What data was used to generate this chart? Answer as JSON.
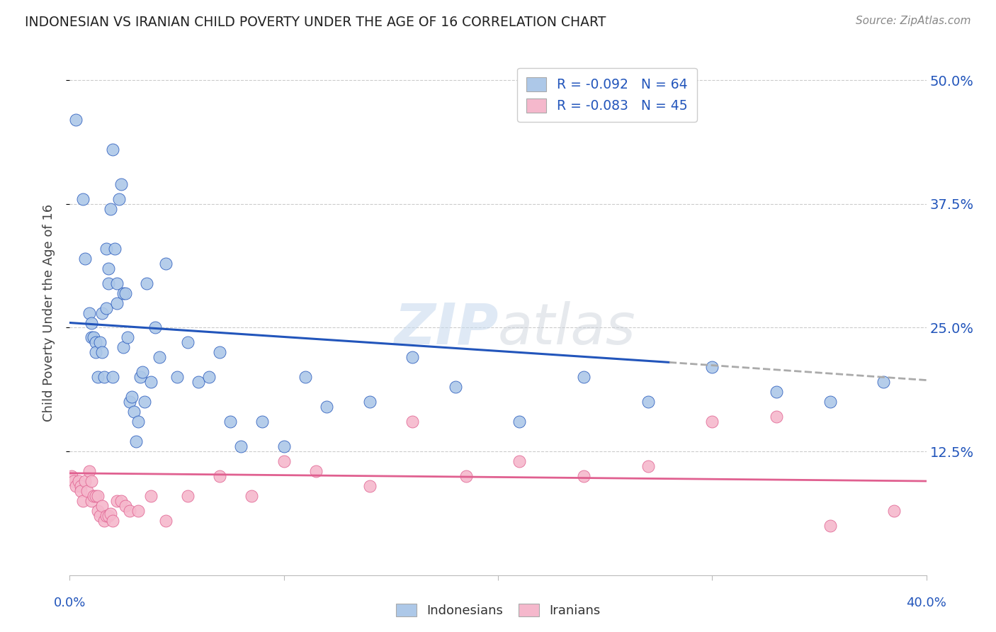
{
  "title": "INDONESIAN VS IRANIAN CHILD POVERTY UNDER THE AGE OF 16 CORRELATION CHART",
  "source": "Source: ZipAtlas.com",
  "ylabel": "Child Poverty Under the Age of 16",
  "ytick_labels": [
    "50.0%",
    "37.5%",
    "25.0%",
    "12.5%"
  ],
  "xlim": [
    0.0,
    0.4
  ],
  "ylim": [
    0.0,
    0.53
  ],
  "indonesian_color": "#adc8e8",
  "iranian_color": "#f5b8cc",
  "trendline_indo_color": "#2255bb",
  "trendline_iran_color": "#e06090",
  "trendline_dashed_color": "#aaaaaa",
  "legend_indo_label": "R = -0.092   N = 64",
  "legend_iran_label": "R = -0.083   N = 45",
  "watermark_zip": "ZIP",
  "watermark_atlas": "atlas",
  "background_color": "#ffffff",
  "grid_color": "#cccccc",
  "indo_trendline_x0": 0.0,
  "indo_trendline_y0": 0.255,
  "indo_trendline_x1": 0.28,
  "indo_trendline_y1": 0.215,
  "indo_trendline_xd0": 0.28,
  "indo_trendline_yd0": 0.215,
  "indo_trendline_xd1": 0.4,
  "indo_trendline_yd1": 0.197,
  "iran_trendline_x0": 0.0,
  "iran_trendline_y0": 0.103,
  "iran_trendline_x1": 0.4,
  "iran_trendline_y1": 0.095,
  "indonesian_x": [
    0.003,
    0.006,
    0.007,
    0.009,
    0.01,
    0.01,
    0.011,
    0.012,
    0.012,
    0.013,
    0.014,
    0.015,
    0.015,
    0.016,
    0.017,
    0.017,
    0.018,
    0.018,
    0.019,
    0.02,
    0.02,
    0.021,
    0.022,
    0.022,
    0.023,
    0.024,
    0.025,
    0.025,
    0.026,
    0.027,
    0.028,
    0.029,
    0.03,
    0.031,
    0.032,
    0.033,
    0.034,
    0.035,
    0.036,
    0.038,
    0.04,
    0.042,
    0.045,
    0.05,
    0.055,
    0.06,
    0.065,
    0.07,
    0.075,
    0.08,
    0.09,
    0.1,
    0.11,
    0.12,
    0.14,
    0.16,
    0.18,
    0.21,
    0.24,
    0.27,
    0.3,
    0.33,
    0.355,
    0.38
  ],
  "indonesian_y": [
    0.46,
    0.38,
    0.32,
    0.265,
    0.255,
    0.24,
    0.24,
    0.235,
    0.225,
    0.2,
    0.235,
    0.225,
    0.265,
    0.2,
    0.27,
    0.33,
    0.295,
    0.31,
    0.37,
    0.2,
    0.43,
    0.33,
    0.275,
    0.295,
    0.38,
    0.395,
    0.23,
    0.285,
    0.285,
    0.24,
    0.175,
    0.18,
    0.165,
    0.135,
    0.155,
    0.2,
    0.205,
    0.175,
    0.295,
    0.195,
    0.25,
    0.22,
    0.315,
    0.2,
    0.235,
    0.195,
    0.2,
    0.225,
    0.155,
    0.13,
    0.155,
    0.13,
    0.2,
    0.17,
    0.175,
    0.22,
    0.19,
    0.155,
    0.2,
    0.175,
    0.21,
    0.185,
    0.175,
    0.195
  ],
  "iranian_x": [
    0.001,
    0.002,
    0.003,
    0.004,
    0.005,
    0.005,
    0.006,
    0.007,
    0.008,
    0.009,
    0.01,
    0.01,
    0.011,
    0.012,
    0.013,
    0.013,
    0.014,
    0.015,
    0.016,
    0.017,
    0.018,
    0.019,
    0.02,
    0.022,
    0.024,
    0.026,
    0.028,
    0.032,
    0.038,
    0.045,
    0.055,
    0.07,
    0.085,
    0.1,
    0.115,
    0.14,
    0.16,
    0.185,
    0.21,
    0.24,
    0.27,
    0.3,
    0.33,
    0.355,
    0.385
  ],
  "iranian_y": [
    0.1,
    0.095,
    0.09,
    0.095,
    0.09,
    0.085,
    0.075,
    0.095,
    0.085,
    0.105,
    0.095,
    0.075,
    0.08,
    0.08,
    0.08,
    0.065,
    0.06,
    0.07,
    0.055,
    0.06,
    0.06,
    0.062,
    0.055,
    0.075,
    0.075,
    0.07,
    0.065,
    0.065,
    0.08,
    0.055,
    0.08,
    0.1,
    0.08,
    0.115,
    0.105,
    0.09,
    0.155,
    0.1,
    0.115,
    0.1,
    0.11,
    0.155,
    0.16,
    0.05,
    0.065
  ]
}
